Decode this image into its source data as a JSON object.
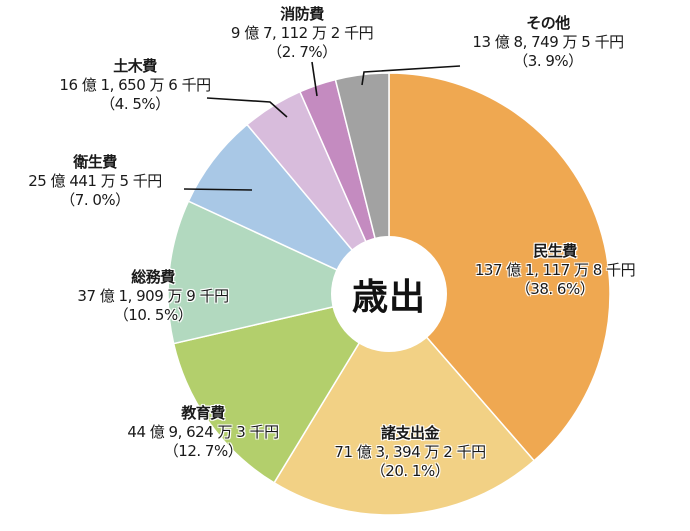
{
  "chart_data": {
    "type": "pie",
    "title": "歳出",
    "donut_center_label": "歳出",
    "start_angle": "12 o'clock, clockwise",
    "slices": [
      {
        "name": "民生費",
        "amount": "137億1,117万8千円",
        "percent": 38.6,
        "color": "#EFA851"
      },
      {
        "name": "諸支出金",
        "amount": "71億3,394万2千円",
        "percent": 20.1,
        "color": "#F2D185"
      },
      {
        "name": "教育費",
        "amount": "44億9,624万3千円",
        "percent": 12.7,
        "color": "#B3CF6C"
      },
      {
        "name": "総務費",
        "amount": "37億1,909万9千円",
        "percent": 10.5,
        "color": "#B2D9BF"
      },
      {
        "name": "衛生費",
        "amount": "25億441万5千円",
        "percent": 7.0,
        "color": "#A9C8E6"
      },
      {
        "name": "土木費",
        "amount": "16億1,650万6千円",
        "percent": 4.5,
        "color": "#D8BCDC"
      },
      {
        "name": "消防費",
        "amount": "9億7,112万2千円",
        "percent": 2.7,
        "color": "#C48BC0"
      },
      {
        "name": "その他",
        "amount": "13億8,749万5千円",
        "percent": 3.9,
        "color": "#A2A2A2"
      }
    ]
  },
  "labels": {
    "center": "歳出",
    "minsei": {
      "name": "民生費",
      "amount": "137 億 1, 117 万 8 千円",
      "pct": "（38. 6%）"
    },
    "shoshishutsu": {
      "name": "諸支出金",
      "amount": "71 億 3, 394 万 2 千円",
      "pct": "（20. 1%）"
    },
    "kyoiku": {
      "name": "教育費",
      "amount": "44 億 9, 624 万 3 千円",
      "pct": "（12. 7%）"
    },
    "somu": {
      "name": "総務費",
      "amount": "37 億 1, 909 万 9 千円",
      "pct": "（10. 5%）"
    },
    "eisei": {
      "name": "衛生費",
      "amount": "25 億 441 万 5 千円",
      "pct": "（7. 0%）"
    },
    "doboku": {
      "name": "土木費",
      "amount": "16 億 1, 650 万 6 千円",
      "pct": "（4. 5%）"
    },
    "shobo": {
      "name": "消防費",
      "amount": "9 億 7, 112 万 2 千円",
      "pct": "（2. 7%）"
    },
    "sonota": {
      "name": "その他",
      "amount": "13 億 8, 749 万 5 千円",
      "pct": "（3. 9%）"
    }
  }
}
